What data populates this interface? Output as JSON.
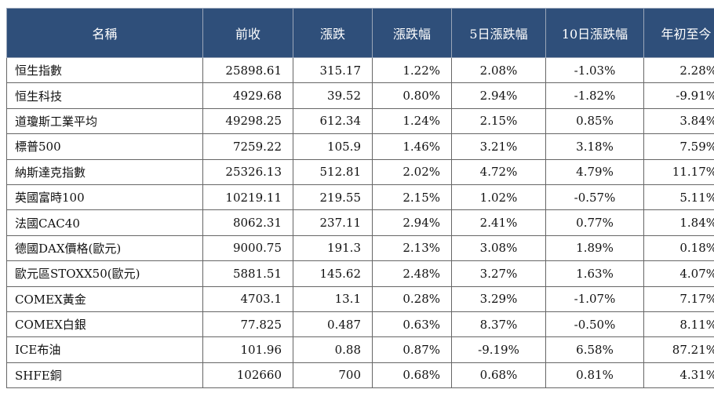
{
  "table": {
    "headers": [
      "名稱",
      "前收",
      "漲跌",
      "漲跌幅",
      "5日漲跌幅",
      "10日漲跌幅",
      "年初至今"
    ],
    "rows": [
      [
        "恒生指數",
        "25898.61",
        "315.17",
        "1.22%",
        "2.08%",
        "-1.03%",
        "2.28%"
      ],
      [
        "恒生科技",
        "4929.68",
        "39.52",
        "0.80%",
        "2.94%",
        "-1.82%",
        "-9.91%"
      ],
      [
        "道瓊斯工業平均",
        "49298.25",
        "612.34",
        "1.24%",
        "2.15%",
        "0.85%",
        "3.84%"
      ],
      [
        "標普500",
        "7259.22",
        "105.9",
        "1.46%",
        "3.21%",
        "3.18%",
        "7.59%"
      ],
      [
        "納斯達克指數",
        "25326.13",
        "512.81",
        "2.02%",
        "4.72%",
        "4.79%",
        "11.17%"
      ],
      [
        "英國富時100",
        "10219.11",
        "219.55",
        "2.15%",
        "1.02%",
        "-0.57%",
        "5.11%"
      ],
      [
        "法國CAC40",
        "8062.31",
        "237.11",
        "2.94%",
        "2.41%",
        "0.77%",
        "1.84%"
      ],
      [
        "德國DAX價格(歐元)",
        "9000.75",
        "191.3",
        "2.13%",
        "3.08%",
        "1.89%",
        "0.18%"
      ],
      [
        "歐元區STOXX50(歐元)",
        "5881.51",
        "145.62",
        "2.48%",
        "3.27%",
        "1.63%",
        "4.07%"
      ],
      [
        "COMEX黃金",
        "4703.1",
        "13.1",
        "0.28%",
        "3.29%",
        "-1.07%",
        "7.17%"
      ],
      [
        "COMEX白銀",
        "77.825",
        "0.487",
        "0.63%",
        "8.37%",
        "-0.50%",
        "8.11%"
      ],
      [
        "ICE布油",
        "101.96",
        "0.88",
        "0.87%",
        "-9.19%",
        "6.58%",
        "87.21%"
      ],
      [
        "SHFE銅",
        "102660",
        "700",
        "0.68%",
        "0.68%",
        "0.81%",
        "4.31%"
      ]
    ]
  }
}
